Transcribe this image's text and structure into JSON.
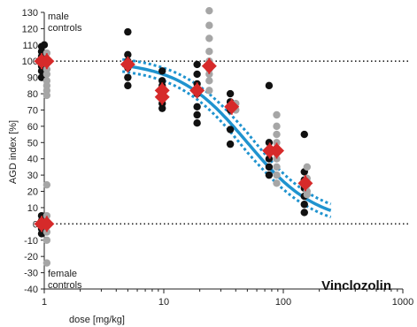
{
  "chart_data": {
    "type": "scatter",
    "title": "Vinclozolin",
    "xlabel": "dose [mg/kg]",
    "ylabel": "AGD index [%]",
    "x_scale": "log",
    "xlim": [
      1,
      1000
    ],
    "ylim": [
      -40,
      130
    ],
    "x_ticks": [
      "1",
      "10",
      "100",
      "1000"
    ],
    "y_ticks": [
      "130",
      "120",
      "110",
      "100",
      "90",
      "80",
      "70",
      "60",
      "50",
      "40",
      "30",
      "20",
      "10",
      "0",
      "-10",
      "-20",
      "-30",
      "-40"
    ],
    "annotations": {
      "male_controls": "male\ncontrols",
      "female_controls": "female\ncontrols"
    },
    "reference_lines": [
      100,
      0
    ],
    "colors": {
      "black": "#111111",
      "grey": "#a6a6a6",
      "red": "#d62a2a",
      "fit": "#1f93cf"
    },
    "series": [
      {
        "color": "black",
        "points": [
          [
            0.95,
            109
          ],
          [
            0.95,
            106
          ],
          [
            0.95,
            103
          ],
          [
            0.95,
            100
          ],
          [
            0.95,
            97
          ],
          [
            0.95,
            94
          ],
          [
            0.95,
            90
          ],
          [
            1.0,
            110
          ],
          [
            1.0,
            104
          ],
          [
            1.0,
            98
          ],
          [
            0.95,
            5
          ],
          [
            0.95,
            2
          ],
          [
            0.95,
            0
          ],
          [
            0.95,
            -3
          ],
          [
            0.95,
            -6
          ],
          [
            1.0,
            4
          ],
          [
            1.0,
            -2
          ],
          [
            5,
            118
          ],
          [
            5,
            104
          ],
          [
            5,
            100
          ],
          [
            5,
            96
          ],
          [
            5,
            90
          ],
          [
            5,
            85
          ],
          [
            9.7,
            94
          ],
          [
            9.7,
            88
          ],
          [
            9.7,
            85
          ],
          [
            9.7,
            78
          ],
          [
            9.7,
            74
          ],
          [
            9.7,
            71
          ],
          [
            19,
            98
          ],
          [
            19,
            92
          ],
          [
            19,
            86
          ],
          [
            19,
            80
          ],
          [
            19,
            72
          ],
          [
            19,
            67
          ],
          [
            19,
            62
          ],
          [
            36,
            80
          ],
          [
            36,
            75
          ],
          [
            36,
            70
          ],
          [
            36,
            58
          ],
          [
            36,
            49
          ],
          [
            76,
            85
          ],
          [
            76,
            50
          ],
          [
            76,
            44
          ],
          [
            76,
            40
          ],
          [
            76,
            35
          ],
          [
            76,
            30
          ],
          [
            150,
            55
          ],
          [
            150,
            32
          ],
          [
            150,
            27
          ],
          [
            150,
            22
          ],
          [
            150,
            17
          ],
          [
            150,
            12
          ],
          [
            150,
            7
          ]
        ]
      },
      {
        "color": "grey",
        "points": [
          [
            1.05,
            105
          ],
          [
            1.05,
            100
          ],
          [
            1.05,
            95
          ],
          [
            1.05,
            92
          ],
          [
            1.05,
            88
          ],
          [
            1.05,
            85
          ],
          [
            1.05,
            82
          ],
          [
            1.05,
            79
          ],
          [
            1.05,
            24
          ],
          [
            1.05,
            5
          ],
          [
            1.05,
            0
          ],
          [
            1.05,
            -5
          ],
          [
            1.05,
            -10
          ],
          [
            1.05,
            -24
          ],
          [
            24,
            131
          ],
          [
            24,
            122
          ],
          [
            24,
            114
          ],
          [
            24,
            106
          ],
          [
            24,
            100
          ],
          [
            24,
            95
          ],
          [
            24,
            92
          ],
          [
            24,
            88
          ],
          [
            24,
            82
          ],
          [
            40,
            74
          ],
          [
            40,
            70
          ],
          [
            88,
            67
          ],
          [
            88,
            60
          ],
          [
            88,
            55
          ],
          [
            88,
            50
          ],
          [
            88,
            45
          ],
          [
            88,
            40
          ],
          [
            88,
            35
          ],
          [
            88,
            30
          ],
          [
            88,
            25
          ],
          [
            158,
            35
          ],
          [
            158,
            28
          ],
          [
            158,
            24
          ],
          [
            158,
            20
          ],
          [
            158,
            18
          ]
        ]
      },
      {
        "color": "red",
        "points": [
          [
            0.95,
            100
          ],
          [
            1.05,
            100
          ],
          [
            0.95,
            0
          ],
          [
            1.05,
            0
          ],
          [
            5,
            98
          ],
          [
            9.7,
            82
          ],
          [
            9.7,
            78
          ],
          [
            19,
            82
          ],
          [
            24,
            97
          ],
          [
            37,
            72
          ],
          [
            77,
            45
          ],
          [
            88,
            45
          ],
          [
            153,
            25
          ]
        ]
      }
    ],
    "fit": {
      "type": "log-logistic",
      "top": 100,
      "ec50": 50,
      "slope": 1.5,
      "x_range": [
        4.5,
        250
      ],
      "ci_offset": 6
    }
  }
}
